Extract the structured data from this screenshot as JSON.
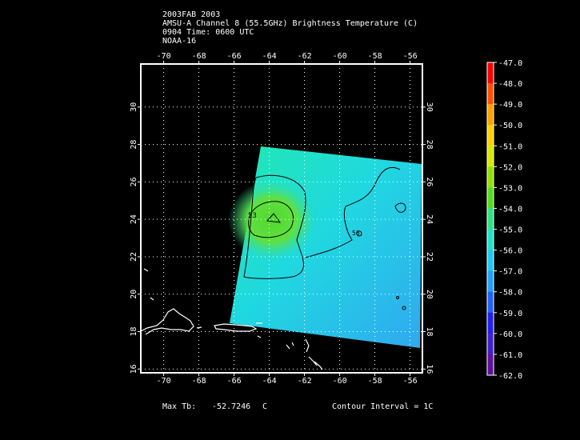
{
  "header": {
    "line1": "2003FAB 2003",
    "line2": "AMSU-A Channel 8 (55.5GHz) Brightness Temperature (C)",
    "line3": "0904 Time: 0600 UTC",
    "line4": "NOAA-16"
  },
  "map": {
    "x_ticks": [
      "-70",
      "-68",
      "-66",
      "-64",
      "-62",
      "-60",
      "-58",
      "-56"
    ],
    "y_ticks": [
      "16",
      "18",
      "20",
      "22",
      "24",
      "26",
      "28",
      "30"
    ],
    "lon_range": [
      -71.3,
      -55.3
    ],
    "lat_range": [
      15.8,
      32.3
    ],
    "grid": true,
    "contour_labels": [
      "53",
      "56"
    ]
  },
  "colorbar": {
    "labels": [
      "-47.0",
      "-48.0",
      "-49.0",
      "-50.0",
      "-51.0",
      "-52.0",
      "-53.0",
      "-54.0",
      "-55.0",
      "-56.0",
      "-57.0",
      "-58.0",
      "-59.0",
      "-60.0",
      "-61.0",
      "-62.0"
    ],
    "colors": [
      "#ff0000",
      "#ff5000",
      "#ffa000",
      "#ffd000",
      "#d8e800",
      "#90e000",
      "#50dc20",
      "#30e080",
      "#20e0c8",
      "#20c8f0",
      "#20a0ff",
      "#2060ff",
      "#2020f0",
      "#4020d0",
      "#6010a0",
      "#ffffff"
    ]
  },
  "footer": {
    "max_label": "Max Tb:",
    "max_value": "-52.7246",
    "max_unit": "C",
    "contour": "Contour Interval = 1C"
  }
}
